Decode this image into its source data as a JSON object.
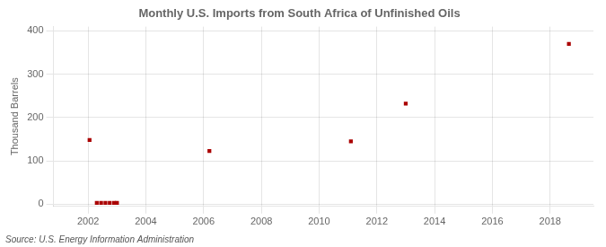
{
  "chart_data": {
    "type": "scatter",
    "title": "Monthly U.S. Imports from South Africa of Unfinished Oils",
    "ylabel": "Thousand Barrels",
    "source": "Source: U.S. Energy Information Administration",
    "x": [
      2002.05,
      2002.3,
      2002.45,
      2002.6,
      2002.75,
      2002.9,
      2003.0,
      2006.2,
      2011.1,
      2013.0,
      2018.65
    ],
    "values": [
      148,
      3,
      3,
      3,
      3,
      3,
      3,
      123,
      145,
      232,
      370
    ],
    "color": "#aa0000",
    "marker": "square",
    "xlim": [
      2000.8,
      2019.5
    ],
    "ylim": [
      -5,
      410
    ],
    "xticks": [
      2002,
      2004,
      2006,
      2008,
      2010,
      2012,
      2014,
      2016,
      2018
    ],
    "yticks": [
      0,
      100,
      200,
      300,
      400
    ],
    "grid": true
  }
}
